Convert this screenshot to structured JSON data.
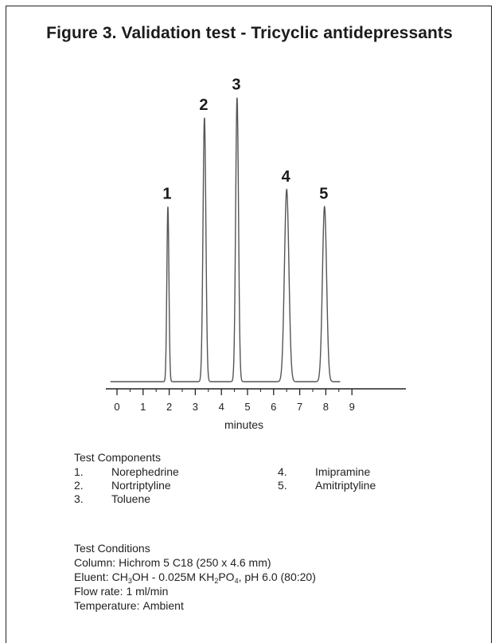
{
  "figure_title": "Figure 3. Validation test - Tricyclic antidepressants",
  "chart_data": {
    "type": "line",
    "title": "Figure 3. Validation test - Tricyclic antidepressants",
    "xlabel": "minutes",
    "ylabel": "",
    "xlim": [
      0,
      9
    ],
    "xticks": [
      0,
      1,
      2,
      3,
      4,
      5,
      6,
      7,
      8,
      9
    ],
    "grid": false,
    "y_ticks_shown": false,
    "peaks": [
      {
        "label": "1",
        "time": 1.95,
        "height": 0.61,
        "width": 0.04
      },
      {
        "label": "2",
        "time": 3.35,
        "height": 0.92,
        "width": 0.055
      },
      {
        "label": "3",
        "time": 4.6,
        "height": 0.99,
        "width": 0.055
      },
      {
        "label": "4",
        "time": 6.5,
        "height": 0.67,
        "width": 0.085
      },
      {
        "label": "5",
        "time": 7.95,
        "height": 0.61,
        "width": 0.08
      }
    ],
    "line_color": "#555555"
  },
  "components": {
    "title": "Test Components",
    "items": [
      {
        "num": "1.",
        "name": "Norephedrine"
      },
      {
        "num": "2.",
        "name": "Nortriptyline"
      },
      {
        "num": "3.",
        "name": "Toluene"
      },
      {
        "num": "4.",
        "name": "Imipramine"
      },
      {
        "num": "5.",
        "name": "Amitriptyline"
      }
    ]
  },
  "conditions": {
    "title": "Test Conditions",
    "column_label": "Column:",
    "column_value": "Hichrom 5 C18 (250 x 4.6 mm)",
    "eluent_label": "Eluent:",
    "eluent_a": "CH",
    "eluent_a_sub1": "3",
    "eluent_b": "OH - 0.025M KH",
    "eluent_b_sub1": "2",
    "eluent_c": "PO",
    "eluent_c_sub1": "4",
    "eluent_d": ", pH 6.0 (80:20)",
    "flow_label": "Flow rate:",
    "flow_value": "1 ml/min",
    "temp_label": "Temperature:",
    "temp_value": "Ambient"
  }
}
